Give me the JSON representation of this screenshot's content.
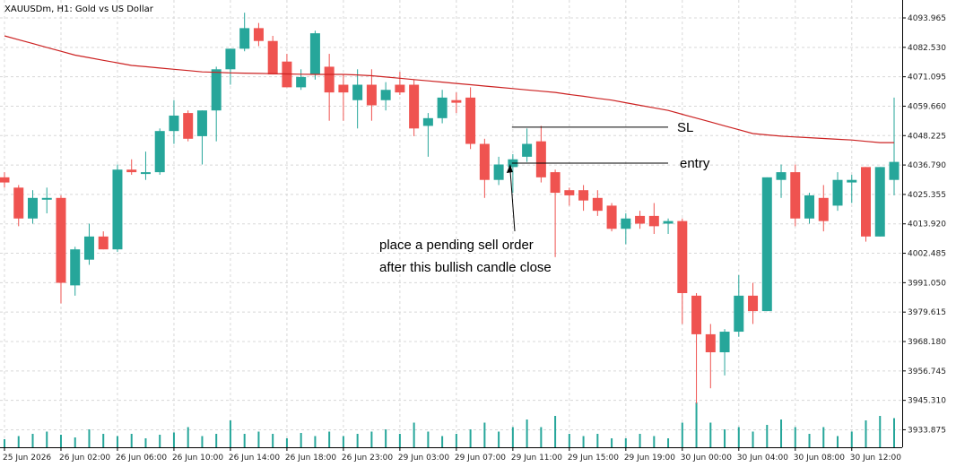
{
  "window": {
    "symbol": "XAUUSDm",
    "timeframe": "H1",
    "description": "Gold vs US Dollar",
    "title_text": "XAUUSDm, H1:  Gold vs US Dollar"
  },
  "chart_data": {
    "type": "candlestick",
    "title": "XAUUSDm, H1:  Gold vs US Dollar",
    "ylim": [
      3928.9,
      4100.0
    ],
    "y_ticks": [
      "4093.965",
      "4082.530",
      "4071.095",
      "4059.660",
      "4048.225",
      "4036.790",
      "4025.355",
      "4013.920",
      "4002.485",
      "3991.050",
      "3979.615",
      "3968.180",
      "3956.745",
      "3945.310",
      "3933.875"
    ],
    "x_tick_labels": [
      "25 Jun 2026",
      "26 Jun 02:00",
      "26 Jun 06:00",
      "26 Jun 10:00",
      "26 Jun 14:00",
      "26 Jun 18:00",
      "26 Jun 23:00",
      "29 Jun 03:00",
      "29 Jun 07:00",
      "29 Jun 11:00",
      "29 Jun 15:00",
      "29 Jun 19:00",
      "30 Jun 00:00",
      "30 Jun 04:00",
      "30 Jun 08:00",
      "30 Jun 12:00"
    ],
    "x_tick_bar_index": [
      0,
      4,
      8,
      12,
      16,
      20,
      24,
      28,
      32,
      36,
      40,
      44,
      48,
      52,
      56,
      60
    ],
    "colors": {
      "bull": "#26a69a",
      "bear": "#ef5350",
      "ma": "#cc2222",
      "grid": "#d8d8d8"
    },
    "grid": true,
    "candles": [
      {
        "o": 4032.0,
        "h": 4034.0,
        "l": 4028.0,
        "c": 4030.0
      },
      {
        "o": 4028.0,
        "h": 4029.0,
        "l": 4013.0,
        "c": 4016.0
      },
      {
        "o": 4016.0,
        "h": 4027.0,
        "l": 4014.0,
        "c": 4024.0
      },
      {
        "o": 4024.0,
        "h": 4028.0,
        "l": 4018.0,
        "c": 4024.0
      },
      {
        "o": 4024.0,
        "h": 4025.0,
        "l": 3983.0,
        "c": 3991.0
      },
      {
        "o": 3990.0,
        "h": 4005.0,
        "l": 3986.0,
        "c": 4004.0
      },
      {
        "o": 4000.0,
        "h": 4014.0,
        "l": 3998.0,
        "c": 4009.0
      },
      {
        "o": 4009.0,
        "h": 4011.0,
        "l": 4004.0,
        "c": 4004.0
      },
      {
        "o": 4004.0,
        "h": 4037.0,
        "l": 4003.0,
        "c": 4035.0
      },
      {
        "o": 4035.0,
        "h": 4039.0,
        "l": 4033.0,
        "c": 4034.0
      },
      {
        "o": 4034.0,
        "h": 4042.0,
        "l": 4031.0,
        "c": 4034.0
      },
      {
        "o": 4034.0,
        "h": 4051.0,
        "l": 4033.0,
        "c": 4050.0
      },
      {
        "o": 4050.0,
        "h": 4062.0,
        "l": 4045.0,
        "c": 4056.0
      },
      {
        "o": 4057.0,
        "h": 4058.0,
        "l": 4046.0,
        "c": 4047.0
      },
      {
        "o": 4048.0,
        "h": 4058.0,
        "l": 4037.0,
        "c": 4058.0
      },
      {
        "o": 4058.0,
        "h": 4075.0,
        "l": 4046.0,
        "c": 4074.0
      },
      {
        "o": 4074.0,
        "h": 4082.0,
        "l": 4068.0,
        "c": 4082.0
      },
      {
        "o": 4082.0,
        "h": 4096.0,
        "l": 4081.0,
        "c": 4090.0
      },
      {
        "o": 4090.0,
        "h": 4092.0,
        "l": 4083.0,
        "c": 4085.0
      },
      {
        "o": 4085.0,
        "h": 4087.0,
        "l": 4072.0,
        "c": 4072.0
      },
      {
        "o": 4077.0,
        "h": 4080.0,
        "l": 4067.0,
        "c": 4067.0
      },
      {
        "o": 4067.0,
        "h": 4074.0,
        "l": 4066.0,
        "c": 4071.0
      },
      {
        "o": 4072.0,
        "h": 4089.0,
        "l": 4070.0,
        "c": 4088.0
      },
      {
        "o": 4075.0,
        "h": 4080.0,
        "l": 4054.0,
        "c": 4065.0
      },
      {
        "o": 4068.0,
        "h": 4072.0,
        "l": 4054.0,
        "c": 4065.0
      },
      {
        "o": 4062.0,
        "h": 4074.0,
        "l": 4051.0,
        "c": 4068.0
      },
      {
        "o": 4068.0,
        "h": 4074.0,
        "l": 4054.0,
        "c": 4060.0
      },
      {
        "o": 4062.0,
        "h": 4069.0,
        "l": 4058.0,
        "c": 4066.0
      },
      {
        "o": 4068.0,
        "h": 4073.0,
        "l": 4064.0,
        "c": 4065.0
      },
      {
        "o": 4068.0,
        "h": 4070.0,
        "l": 4048.0,
        "c": 4051.0
      },
      {
        "o": 4052.0,
        "h": 4057.0,
        "l": 4040.0,
        "c": 4055.0
      },
      {
        "o": 4055.0,
        "h": 4066.0,
        "l": 4053.0,
        "c": 4063.0
      },
      {
        "o": 4062.0,
        "h": 4065.0,
        "l": 4057.0,
        "c": 4061.0
      },
      {
        "o": 4063.0,
        "h": 4067.0,
        "l": 4043.0,
        "c": 4045.0
      },
      {
        "o": 4045.0,
        "h": 4047.0,
        "l": 4024.0,
        "c": 4031.0
      },
      {
        "o": 4031.0,
        "h": 4040.0,
        "l": 4029.0,
        "c": 4037.0
      },
      {
        "o": 4036.0,
        "h": 4041.0,
        "l": 4026.0,
        "c": 4039.0
      },
      {
        "o": 4040.0,
        "h": 4051.0,
        "l": 4038.0,
        "c": 4045.0
      },
      {
        "o": 4046.0,
        "h": 4052.0,
        "l": 4030.0,
        "c": 4032.0
      },
      {
        "o": 4034.0,
        "h": 4035.0,
        "l": 4001.0,
        "c": 4026.0
      },
      {
        "o": 4027.0,
        "h": 4028.0,
        "l": 4021.0,
        "c": 4025.0
      },
      {
        "o": 4027.0,
        "h": 4029.0,
        "l": 4019.0,
        "c": 4023.0
      },
      {
        "o": 4024.0,
        "h": 4027.0,
        "l": 4017.0,
        "c": 4019.0
      },
      {
        "o": 4021.0,
        "h": 4022.0,
        "l": 4011.0,
        "c": 4012.0
      },
      {
        "o": 4012.0,
        "h": 4018.0,
        "l": 4006.0,
        "c": 4016.0
      },
      {
        "o": 4017.0,
        "h": 4019.0,
        "l": 4012.0,
        "c": 4014.0
      },
      {
        "o": 4017.0,
        "h": 4022.0,
        "l": 4010.0,
        "c": 4013.0
      },
      {
        "o": 4014.0,
        "h": 4016.0,
        "l": 4010.0,
        "c": 4015.0
      },
      {
        "o": 4015.0,
        "h": 4016.0,
        "l": 3975.0,
        "c": 3987.0
      },
      {
        "o": 3986.0,
        "h": 3987.0,
        "l": 3944.0,
        "c": 3971.0
      },
      {
        "o": 3971.0,
        "h": 3975.0,
        "l": 3950.0,
        "c": 3964.0
      },
      {
        "o": 3964.0,
        "h": 3973.0,
        "l": 3955.0,
        "c": 3972.0
      },
      {
        "o": 3972.0,
        "h": 3994.0,
        "l": 3970.0,
        "c": 3986.0
      },
      {
        "o": 3986.0,
        "h": 3991.0,
        "l": 3975.0,
        "c": 3980.0
      },
      {
        "o": 3980.0,
        "h": 4032.0,
        "l": 3980.0,
        "c": 4032.0
      },
      {
        "o": 4031.0,
        "h": 4037.0,
        "l": 4024.0,
        "c": 4034.0
      },
      {
        "o": 4034.0,
        "h": 4037.0,
        "l": 4013.0,
        "c": 4016.0
      },
      {
        "o": 4016.0,
        "h": 4026.0,
        "l": 4014.0,
        "c": 4025.0
      },
      {
        "o": 4024.0,
        "h": 4029.0,
        "l": 4011.0,
        "c": 4015.0
      },
      {
        "o": 4021.0,
        "h": 4034.0,
        "l": 4019.0,
        "c": 4031.0
      },
      {
        "o": 4030.0,
        "h": 4033.0,
        "l": 4022.0,
        "c": 4031.0
      },
      {
        "o": 4036.0,
        "h": 4036.0,
        "l": 4007.0,
        "c": 4009.0
      },
      {
        "o": 4009.0,
        "h": 4036.0,
        "l": 4009.0,
        "c": 4036.0
      },
      {
        "o": 4031.0,
        "h": 4063.0,
        "l": 4025.0,
        "c": 4038.0
      }
    ],
    "volumes": [
      0.18,
      0.25,
      0.3,
      0.35,
      0.28,
      0.22,
      0.4,
      0.3,
      0.25,
      0.3,
      0.2,
      0.28,
      0.33,
      0.45,
      0.25,
      0.3,
      0.6,
      0.3,
      0.35,
      0.3,
      0.2,
      0.32,
      0.25,
      0.35,
      0.25,
      0.3,
      0.35,
      0.4,
      0.3,
      0.55,
      0.35,
      0.25,
      0.3,
      0.4,
      0.55,
      0.35,
      0.45,
      0.62,
      0.45,
      0.7,
      0.3,
      0.25,
      0.3,
      0.2,
      0.2,
      0.3,
      0.25,
      0.2,
      0.55,
      1.0,
      0.55,
      0.4,
      0.45,
      0.35,
      0.5,
      0.62,
      0.45,
      0.3,
      0.45,
      0.25,
      0.35,
      0.6,
      0.7,
      0.65
    ],
    "moving_average": [
      4087,
      4085.5,
      4084,
      4082.5,
      4081,
      4079.5,
      4078.5,
      4077.5,
      4076.5,
      4075.5,
      4075,
      4074.5,
      4074,
      4073.5,
      4073,
      4072.8,
      4072.6,
      4072.5,
      4072.4,
      4072.3,
      4072.2,
      4072.1,
      4072.0,
      4072.0,
      4072.0,
      4071.8,
      4071.5,
      4071.0,
      4070.5,
      4070.0,
      4069.5,
      4069.0,
      4068.5,
      4068.0,
      4067.5,
      4067.0,
      4066.5,
      4066.0,
      4065.5,
      4065.0,
      4064.2,
      4063.5,
      4062.7,
      4062.0,
      4061.0,
      4060.0,
      4059.0,
      4058.0,
      4056.5,
      4055.0,
      4053.5,
      4052.0,
      4050.5,
      4049.0,
      4048.5,
      4048.0,
      4047.7,
      4047.4,
      4047.1,
      4046.8,
      4046.5,
      4046.0,
      4045.5,
      4045.5
    ],
    "annotations": {
      "sl_label": "SL",
      "sl_price": 4051.5,
      "entry_label": "entry",
      "entry_price": 4037.5,
      "note_line1": "place a pending sell order",
      "note_line2": "after this bullish candle close"
    }
  }
}
